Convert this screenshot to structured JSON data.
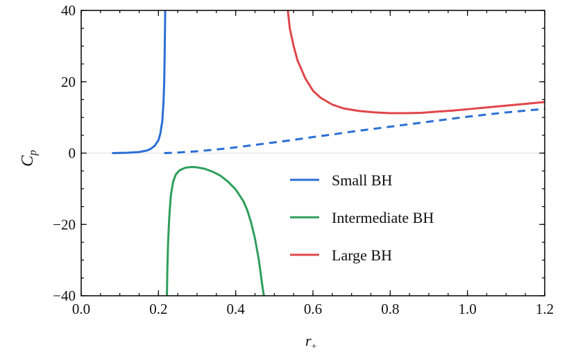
{
  "chart_data": {
    "type": "line",
    "xlabel": "r",
    "xlabel_sub": "+",
    "ylabel": "C",
    "ylabel_sub": "p",
    "xlim": [
      0.0,
      1.2
    ],
    "ylim": [
      -40,
      40
    ],
    "x_ticks": [
      0.0,
      0.2,
      0.4,
      0.6,
      0.8,
      1.0,
      1.2
    ],
    "x_tick_labels": [
      "0.0",
      "0.2",
      "0.4",
      "0.6",
      "0.8",
      "1.0",
      "1.2"
    ],
    "y_ticks": [
      -40,
      -20,
      0,
      20,
      40
    ],
    "y_tick_labels": [
      "−40",
      "−20",
      "0",
      "20",
      "40"
    ],
    "x_minor_step": 0.05,
    "y_minor_step": 5,
    "zero_line": true,
    "legend_position": "center-right",
    "series": [
      {
        "name": "Small BH",
        "color": "#2a6fd6",
        "style": "solid",
        "x": [
          0.08,
          0.12,
          0.15,
          0.17,
          0.18,
          0.19,
          0.2,
          0.205,
          0.21,
          0.213,
          0.215,
          0.216,
          0.217,
          0.2175
        ],
        "y": [
          0.0,
          0.1,
          0.3,
          0.7,
          1.2,
          2.0,
          3.6,
          5.5,
          9.0,
          14.0,
          20.0,
          27.0,
          35.0,
          40.0
        ]
      },
      {
        "name": "",
        "color": "#2a6fd6",
        "style": "dashed",
        "x": [
          0.215,
          0.25,
          0.3,
          0.35,
          0.4,
          0.45,
          0.5,
          0.55,
          0.6,
          0.65,
          0.7,
          0.75,
          0.8,
          0.85,
          0.9,
          0.95,
          1.0,
          1.05,
          1.1,
          1.15,
          1.2
        ],
        "y": [
          0.0,
          0.15,
          0.5,
          1.0,
          1.6,
          2.3,
          3.0,
          3.7,
          4.5,
          5.2,
          6.0,
          6.7,
          7.4,
          8.1,
          8.8,
          9.5,
          10.2,
          10.8,
          11.4,
          11.9,
          12.4
        ]
      },
      {
        "name": "Intermediate BH",
        "color": "#2e9e5b",
        "style": "solid",
        "x": [
          0.222,
          0.223,
          0.225,
          0.228,
          0.232,
          0.238,
          0.245,
          0.255,
          0.27,
          0.285,
          0.3,
          0.32,
          0.34,
          0.36,
          0.38,
          0.4,
          0.42,
          0.43,
          0.44,
          0.45,
          0.46,
          0.465,
          0.47,
          0.473
        ],
        "y": [
          -40.0,
          -33.0,
          -25.0,
          -18.0,
          -12.0,
          -8.0,
          -6.0,
          -4.8,
          -4.1,
          -3.9,
          -4.0,
          -4.4,
          -5.2,
          -6.3,
          -8.0,
          -10.2,
          -13.5,
          -16.0,
          -19.5,
          -24.0,
          -30.0,
          -34.0,
          -38.0,
          -40.0
        ]
      },
      {
        "name": "Large BH",
        "color": "#e0464a",
        "style": "solid",
        "x": [
          0.535,
          0.54,
          0.55,
          0.56,
          0.58,
          0.6,
          0.62,
          0.65,
          0.68,
          0.72,
          0.76,
          0.8,
          0.84,
          0.88,
          0.92,
          0.96,
          1.0,
          1.05,
          1.1,
          1.15,
          1.2
        ],
        "y": [
          40.0,
          35.0,
          30.0,
          26.0,
          21.0,
          17.5,
          15.5,
          13.6,
          12.5,
          11.8,
          11.4,
          11.2,
          11.2,
          11.3,
          11.6,
          11.9,
          12.3,
          12.8,
          13.3,
          13.8,
          14.3
        ]
      }
    ],
    "legend": [
      "Small BH",
      "Intermediate BH",
      "Large BH"
    ]
  }
}
